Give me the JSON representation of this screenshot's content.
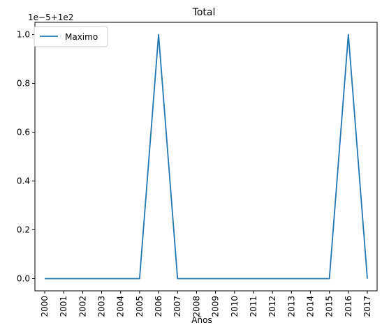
{
  "chart_data": {
    "type": "line",
    "title": "Total",
    "xlabel": "Años",
    "ylabel": "",
    "y_offset_label": "1e−5+1e2",
    "categories": [
      "2000",
      "2001",
      "2002",
      "2003",
      "2004",
      "2005",
      "2006",
      "2007",
      "2008",
      "2009",
      "2010",
      "2011",
      "2012",
      "2013",
      "2014",
      "2015",
      "2016",
      "2017"
    ],
    "series": [
      {
        "name": "Maximo",
        "color": "#1f77b4",
        "values": [
          100.0,
          100.0,
          100.0,
          100.0,
          100.0,
          100.0,
          100.00001,
          100.0,
          100.0,
          100.0,
          100.0,
          100.0,
          100.0,
          100.0,
          100.0,
          100.0,
          100.00001,
          100.0
        ]
      }
    ],
    "yticks": [
      "0.0",
      "0.2",
      "0.4",
      "0.6",
      "0.8",
      "1.0"
    ],
    "ylim": [
      -0.05,
      1.05
    ],
    "y_scale": "values shown as (value - 100) / 1e-5",
    "grid": false,
    "legend_position": "upper left"
  }
}
